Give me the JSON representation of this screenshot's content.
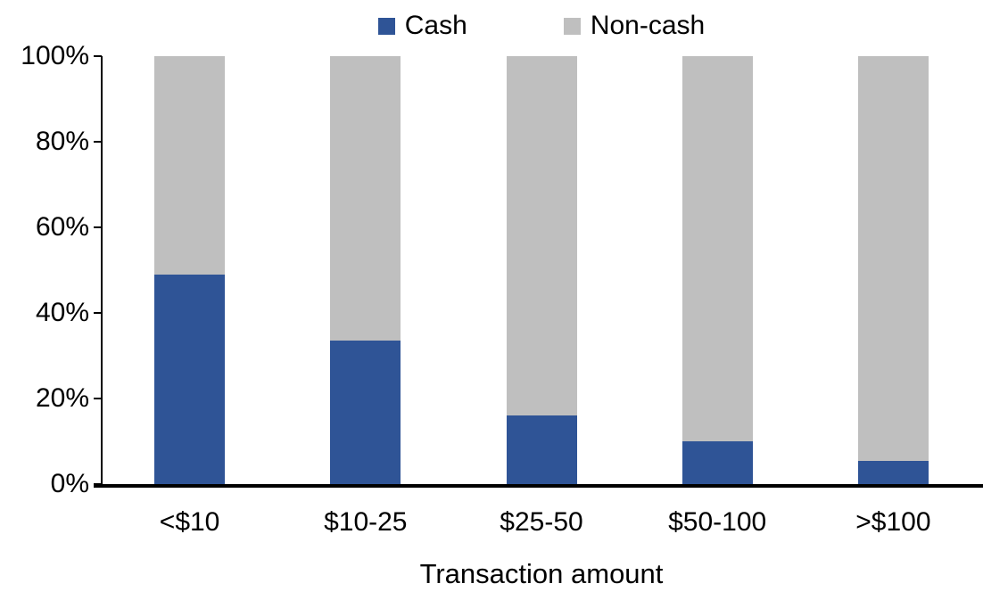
{
  "chart_data": {
    "type": "bar",
    "stacked": true,
    "percent_stacked": true,
    "title": "",
    "xlabel": "Transaction amount",
    "ylabel": "",
    "categories": [
      "<$10",
      "$10-25",
      "$25-50",
      "$50-100",
      ">$100"
    ],
    "series": [
      {
        "name": "Cash",
        "color": "#2F5496",
        "values": [
          49,
          33.5,
          16,
          10,
          5.5
        ]
      },
      {
        "name": "Non-cash",
        "color": "#BFBFBF",
        "values": [
          51,
          66.5,
          84,
          90,
          94.5
        ]
      }
    ],
    "ylim": [
      0,
      100
    ],
    "y_ticks": [
      {
        "label": "0%",
        "value": 0
      },
      {
        "label": "20%",
        "value": 20
      },
      {
        "label": "40%",
        "value": 40
      },
      {
        "label": "60%",
        "value": 60
      },
      {
        "label": "80%",
        "value": 80
      },
      {
        "label": "100%",
        "value": 100
      }
    ],
    "grid": false,
    "legend_position": "top-center",
    "colors": {
      "axis": "#000000",
      "text": "#000000",
      "background": "#FFFFFF"
    }
  }
}
